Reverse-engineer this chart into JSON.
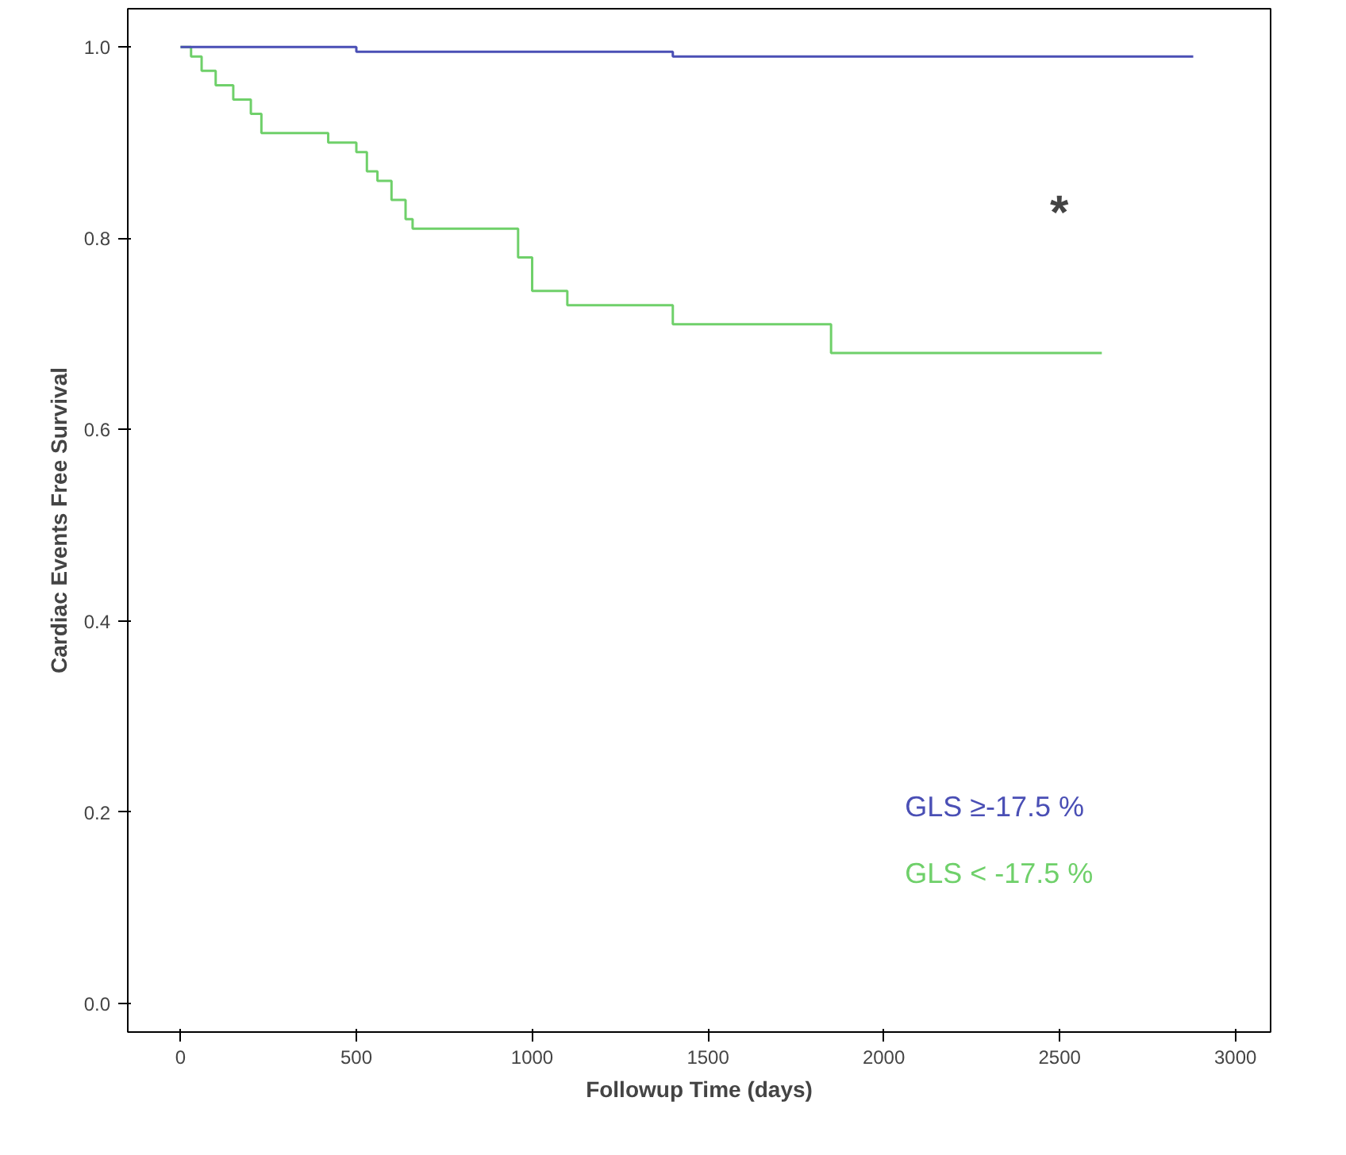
{
  "chart_data": {
    "type": "step",
    "xlabel": "Followup Time (days)",
    "ylabel": "Cardiac Events Free Survival",
    "xlim": [
      -150,
      3100
    ],
    "ylim": [
      -0.03,
      1.04
    ],
    "xticks": [
      0,
      500,
      1000,
      1500,
      2000,
      2500,
      3000
    ],
    "yticks": [
      {
        "value": 0,
        "label": "0.0"
      },
      0.2,
      0.4,
      0.6,
      0.8,
      {
        "value": 1,
        "label": "1.0"
      }
    ],
    "grid": false,
    "legend": "bottom right",
    "series": [
      {
        "name": "GLS ≥-17.5 %",
        "color": "#4a4fb5",
        "x": [
          0,
          500,
          1400,
          2880
        ],
        "values": [
          1.0,
          0.995,
          0.99,
          0.99
        ]
      },
      {
        "name": "GLS < -17.5 %",
        "color": "#6fd06a",
        "x": [
          0,
          30,
          60,
          100,
          150,
          200,
          230,
          420,
          500,
          530,
          560,
          600,
          640,
          660,
          960,
          1000,
          1100,
          1400,
          1850,
          2620
        ],
        "values": [
          1.0,
          0.99,
          0.975,
          0.96,
          0.945,
          0.93,
          0.91,
          0.9,
          0.89,
          0.87,
          0.86,
          0.84,
          0.82,
          0.81,
          0.78,
          0.745,
          0.73,
          0.71,
          0.68,
          0.68
        ]
      }
    ],
    "annotations": [
      "*"
    ]
  }
}
